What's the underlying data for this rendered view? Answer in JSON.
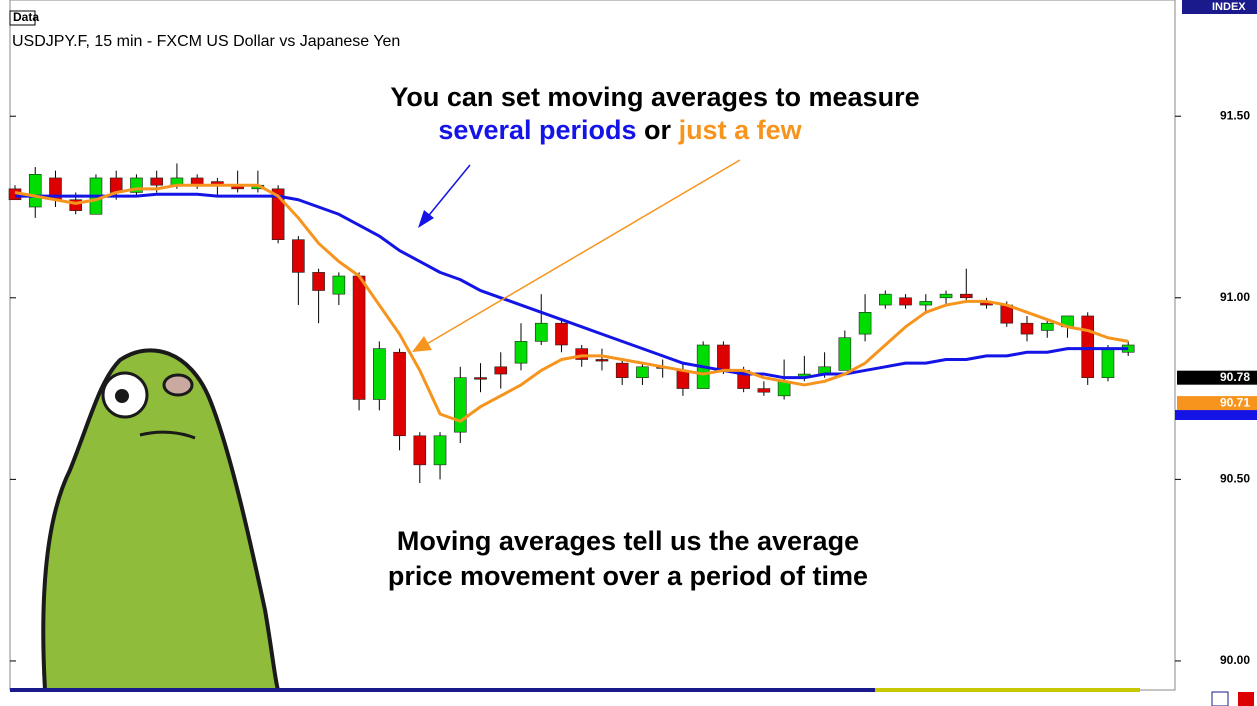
{
  "chart_data": {
    "type": "candlestick",
    "panel_label": "Data",
    "title": "USDJPY.F, 15 min - FXCM US Dollar vs Japanese Yen",
    "axis_tag": "INDEX",
    "annotation_top_line1": "You can set moving averages to measure",
    "annotation_top_blue": "several periods",
    "annotation_top_or": "or",
    "annotation_top_orange": "just a few",
    "annotation_bottom_line1": "Moving averages tell us the average",
    "annotation_bottom_line2": "price movement over a period of time",
    "ylim": [
      89.92,
      91.82
    ],
    "yticks": [
      {
        "value": 91.5,
        "label": "91.50"
      },
      {
        "value": 91.0,
        "label": "91.00"
      },
      {
        "value": 90.5,
        "label": "90.50"
      },
      {
        "value": 90.0,
        "label": "90.00"
      }
    ],
    "up_color": "#00dd00",
    "down_color": "#dd0000",
    "open": [
      91.3,
      91.25,
      91.33,
      91.27,
      91.23,
      91.33,
      91.29,
      91.33,
      91.31,
      91.33,
      91.32,
      91.31,
      91.3,
      91.3,
      91.16,
      91.07,
      91.01,
      91.06,
      90.72,
      90.85,
      90.62,
      90.54,
      90.63,
      90.78,
      90.81,
      90.82,
      90.88,
      90.93,
      90.86,
      90.83,
      90.82,
      90.78,
      90.81,
      90.8,
      90.75,
      90.87,
      90.8,
      90.75,
      90.73,
      90.78,
      90.79,
      90.8,
      90.9,
      90.98,
      91.0,
      90.98,
      91.0,
      91.01,
      90.99,
      90.98,
      90.93,
      90.91,
      90.92,
      90.95,
      90.78,
      90.85
    ],
    "high": [
      91.31,
      91.36,
      91.35,
      91.29,
      91.34,
      91.35,
      91.34,
      91.35,
      91.37,
      91.34,
      91.33,
      91.35,
      91.35,
      91.31,
      91.17,
      91.08,
      91.07,
      91.07,
      90.88,
      90.86,
      90.63,
      90.63,
      90.81,
      90.82,
      90.85,
      90.93,
      91.01,
      90.94,
      90.87,
      90.86,
      90.83,
      90.82,
      90.83,
      90.82,
      90.88,
      90.88,
      90.81,
      90.77,
      90.83,
      90.84,
      90.85,
      90.91,
      91.01,
      91.02,
      91.01,
      91.01,
      91.02,
      91.08,
      91.0,
      90.99,
      90.95,
      90.94,
      90.95,
      90.96,
      90.87,
      90.88
    ],
    "low": [
      91.27,
      91.22,
      91.25,
      91.23,
      91.23,
      91.27,
      91.28,
      91.29,
      91.3,
      91.3,
      91.28,
      91.29,
      91.29,
      91.15,
      90.98,
      90.93,
      90.98,
      90.69,
      90.69,
      90.58,
      90.49,
      90.5,
      90.6,
      90.74,
      90.75,
      90.8,
      90.87,
      90.85,
      90.81,
      90.8,
      90.76,
      90.76,
      90.78,
      90.73,
      90.75,
      90.79,
      90.74,
      90.73,
      90.72,
      90.77,
      90.78,
      90.8,
      90.88,
      90.97,
      90.97,
      90.96,
      90.98,
      90.99,
      90.97,
      90.92,
      90.88,
      90.89,
      90.89,
      90.76,
      90.77,
      90.84
    ],
    "close": [
      91.27,
      91.34,
      91.27,
      91.24,
      91.33,
      91.29,
      91.33,
      91.31,
      91.33,
      91.31,
      91.31,
      91.3,
      91.31,
      91.16,
      91.07,
      91.02,
      91.06,
      90.72,
      90.86,
      90.62,
      90.54,
      90.62,
      90.78,
      90.78,
      90.79,
      90.88,
      90.93,
      90.87,
      90.83,
      90.83,
      90.78,
      90.81,
      90.81,
      90.75,
      90.87,
      90.8,
      90.75,
      90.74,
      90.77,
      90.79,
      90.81,
      90.89,
      90.96,
      91.01,
      90.98,
      90.99,
      91.01,
      91.0,
      90.98,
      90.93,
      90.9,
      90.93,
      90.95,
      90.78,
      90.86,
      90.87
    ],
    "moving_averages": [
      {
        "color": "#1414e6",
        "values": [
          91.28,
          91.28,
          91.28,
          91.28,
          91.28,
          91.28,
          91.28,
          91.285,
          91.285,
          91.285,
          91.28,
          91.28,
          91.28,
          91.28,
          91.27,
          91.25,
          91.23,
          91.2,
          91.17,
          91.13,
          91.1,
          91.07,
          91.05,
          91.02,
          91.0,
          90.98,
          90.96,
          90.94,
          90.92,
          90.9,
          90.88,
          90.86,
          90.84,
          90.82,
          90.81,
          90.8,
          90.79,
          90.79,
          90.78,
          90.78,
          90.79,
          90.79,
          90.8,
          90.81,
          90.82,
          90.82,
          90.83,
          90.83,
          90.84,
          90.84,
          90.85,
          90.85,
          90.86,
          90.86,
          90.86,
          90.86
        ]
      },
      {
        "color": "#f7941d",
        "values": [
          91.29,
          91.28,
          91.27,
          91.26,
          91.27,
          91.29,
          91.3,
          91.3,
          91.31,
          91.31,
          91.31,
          91.31,
          91.31,
          91.28,
          91.22,
          91.15,
          91.1,
          91.06,
          90.98,
          90.9,
          90.8,
          90.68,
          90.66,
          90.7,
          90.73,
          90.76,
          90.8,
          90.83,
          90.84,
          90.84,
          90.83,
          90.82,
          90.81,
          90.8,
          90.79,
          90.8,
          90.8,
          90.78,
          90.77,
          90.76,
          90.77,
          90.79,
          90.82,
          90.87,
          90.92,
          90.96,
          90.98,
          90.99,
          90.99,
          90.98,
          90.96,
          90.94,
          90.92,
          90.91,
          90.89,
          90.88
        ]
      }
    ],
    "price_markers": [
      {
        "value": 90.78,
        "color": "#000000"
      },
      {
        "value": 90.71,
        "color": "#f7941d"
      }
    ]
  }
}
